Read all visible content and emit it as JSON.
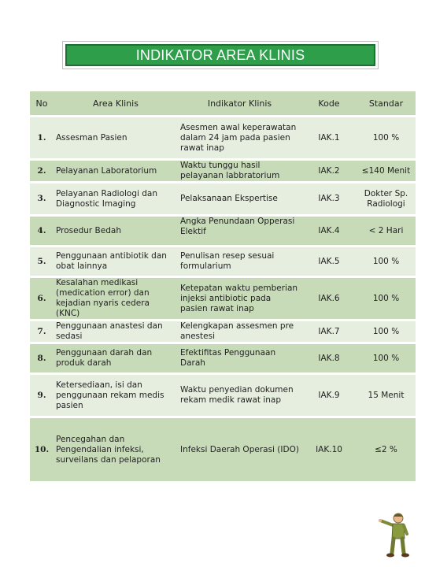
{
  "title": "INDIKATOR AREA KLINIS",
  "headers": {
    "no": "No",
    "area": "Area Klinis",
    "indikator": "Indikator Klinis",
    "kode": "Kode",
    "standar": "Standar"
  },
  "rows": [
    {
      "no": "1.",
      "area": "Assesman Pasien",
      "indikator": "Asesmen awal keperawatan dalam 24 jam pada  pasien rawat inap",
      "kode": "IAK.1",
      "standar": "100 %"
    },
    {
      "no": "2.",
      "area": "Pelayanan Laboratorium",
      "indikator": "Waktu tunggu hasil pelayanan labbratorium",
      "kode": "IAK.2",
      "standar": "≤140 Menit"
    },
    {
      "no": "3.",
      "area": "Pelayanan Radiologi dan Diagnostic Imaging",
      "indikator": "Pelaksanaan Ekspertise",
      "kode": "IAK.3",
      "standar": "Dokter Sp. Radiologi"
    },
    {
      "no": "4.",
      "area": "Prosedur Bedah",
      "indikator": "Angka Penundaan Opperasi Elektif",
      "kode": "IAK.4",
      "standar": "< 2 Hari"
    },
    {
      "no": "5.",
      "area": "Penggunaan antibiotik dan obat lainnya",
      "indikator": "Penulisan resep sesuai formularium",
      "kode": "IAK.5",
      "standar": "100 %"
    },
    {
      "no": "6.",
      "area": "Kesalahan medikasi (medication error)  dan kejadian nyaris cedera (KNC)",
      "indikator": "Ketepatan waktu pemberian injeksi antibiotic pada pasien rawat inap",
      "kode": "IAK.6",
      "standar": "100 %"
    },
    {
      "no": "7.",
      "area": "Penggunaan anastesi dan sedasi",
      "indikator": "Kelengkapan assesmen pre anestesi",
      "kode": "IAK.7",
      "standar": "100 %"
    },
    {
      "no": "8.",
      "area": "Penggunaan darah dan produk darah",
      "indikator": "Efektifitas Penggunaan Darah",
      "kode": "IAK.8",
      "standar": "100 %"
    },
    {
      "no": "9.",
      "area": "Ketersediaan, isi dan penggunaan rekam medis pasien",
      "indikator": "Waktu penyedian dokumen rekam medik rawat inap",
      "kode": "IAK.9",
      "standar": "15 Menit"
    },
    {
      "no": "10.",
      "area": "Pencegahan dan Pengendalian infeksi, surveilans dan pelaporan",
      "indikator": "Infeksi Daerah Operasi (IDO)",
      "kode": "IAK.10",
      "standar": "≤2 %"
    }
  ],
  "colors": {
    "title_green": "#2e9e4a",
    "row_light": "#e6eedf",
    "row_dark": "#c8dbb9",
    "header_bg": "#c6d9b7"
  },
  "decoration": {
    "figure": "cartoon-man-pointing-icon"
  }
}
